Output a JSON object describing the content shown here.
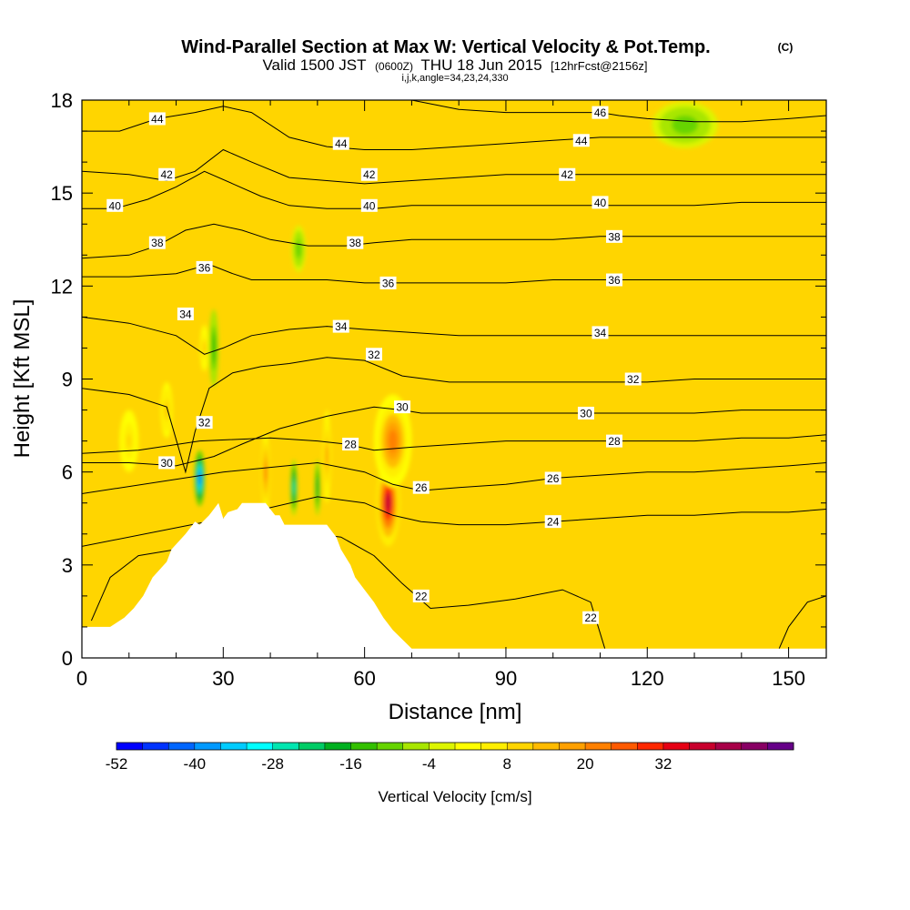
{
  "titles": {
    "main": "Wind-Parallel Section at Max W: Vertical Velocity & Pot.Temp.",
    "copyright": "(C)",
    "valid_prefix": "Valid 1500 JST",
    "valid_z": "(0600Z)",
    "valid_date": "THU 18 Jun 2015",
    "fcst": "[12hrFcst@2156z]",
    "indices": "i,j,k,angle=34,23,24,330"
  },
  "chart_data": {
    "type": "heatmap",
    "title": "Wind-Parallel Section at Max W: Vertical Velocity & Pot.Temp.",
    "xlabel": "Distance [nm]",
    "ylabel": "Height [Kft MSL]",
    "xlim": [
      0,
      158
    ],
    "ylim": [
      0,
      18
    ],
    "xticks": [
      0,
      30,
      60,
      90,
      120,
      150
    ],
    "yticks": [
      0,
      3,
      6,
      9,
      12,
      15,
      18
    ],
    "colorbar": {
      "label": "Vertical Velocity [cm/s]",
      "tick_values": [
        -52,
        -40,
        -28,
        -16,
        -4,
        8,
        20,
        32
      ],
      "levels_min": -52,
      "level_step": 4,
      "colors": [
        "#0000ff",
        "#0033ff",
        "#0066ff",
        "#0099ff",
        "#00ccff",
        "#00ffff",
        "#00e6b0",
        "#00cc66",
        "#00b020",
        "#33c000",
        "#66d400",
        "#a8e600",
        "#ddf500",
        "#ffff00",
        "#ffee00",
        "#ffd500",
        "#ffbb00",
        "#ffa000",
        "#ff8000",
        "#ff5a00",
        "#ff2800",
        "#e60014",
        "#c8002d",
        "#a80048",
        "#880064",
        "#660088"
      ]
    },
    "terrain": {
      "distance_nm": [
        0,
        6,
        9,
        11,
        13,
        15,
        18,
        19,
        22,
        24,
        25,
        27,
        29,
        30,
        31,
        33,
        34,
        36,
        38,
        39,
        41,
        42,
        43,
        46,
        48,
        49,
        51,
        52,
        54,
        55,
        57,
        58,
        60,
        62,
        64,
        66,
        68,
        70,
        72,
        158
      ],
      "height_kft": [
        1.0,
        1.0,
        1.3,
        1.6,
        2.0,
        2.6,
        3.1,
        3.5,
        4.0,
        4.4,
        4.3,
        4.6,
        5.0,
        4.5,
        4.7,
        4.8,
        5.0,
        5.0,
        5.0,
        5.0,
        4.6,
        4.6,
        4.3,
        4.3,
        4.3,
        4.3,
        4.3,
        4.3,
        3.9,
        3.5,
        3.0,
        2.6,
        2.2,
        1.8,
        1.3,
        0.9,
        0.6,
        0.3,
        0.3,
        0.3
      ]
    },
    "vertical_velocity_features": [
      {
        "feature": "strong updraft core",
        "center_nm": 65,
        "center_kft": 5.0,
        "peak_cm_s": 38,
        "width_nm": 5,
        "height_kft": 2.8
      },
      {
        "feature": "updraft core",
        "center_nm": 66,
        "center_kft": 7.0,
        "peak_cm_s": 22,
        "width_nm": 8,
        "height_kft": 3.0
      },
      {
        "feature": "updraft column",
        "center_nm": 39,
        "center_kft": 6.0,
        "peak_cm_s": 24,
        "width_nm": 1.6,
        "height_kft": 2.5
      },
      {
        "feature": "updraft column",
        "center_nm": 52,
        "center_kft": 6.5,
        "peak_cm_s": 20,
        "width_nm": 1.6,
        "height_kft": 3.0
      },
      {
        "feature": "updraft",
        "center_nm": 18,
        "center_kft": 8.0,
        "peak_cm_s": 14,
        "width_nm": 2.5,
        "height_kft": 1.8
      },
      {
        "feature": "updraft",
        "center_nm": 26,
        "center_kft": 10.0,
        "peak_cm_s": 12,
        "width_nm": 1.8,
        "height_kft": 1.5
      },
      {
        "feature": "updraft",
        "center_nm": 10,
        "center_kft": 7.0,
        "peak_cm_s": 10,
        "width_nm": 4,
        "height_kft": 2.0
      },
      {
        "feature": "downdraft core",
        "center_nm": 25,
        "center_kft": 5.8,
        "peak_cm_s": -42,
        "width_nm": 2.2,
        "height_kft": 1.8
      },
      {
        "feature": "downdraft band",
        "center_nm": 28,
        "center_kft": 10.0,
        "peak_cm_s": -16,
        "width_nm": 2.0,
        "height_kft": 2.5
      },
      {
        "feature": "downdraft column",
        "center_nm": 45,
        "center_kft": 5.5,
        "peak_cm_s": -28,
        "width_nm": 1.5,
        "height_kft": 1.8
      },
      {
        "feature": "downdraft column",
        "center_nm": 50,
        "center_kft": 5.5,
        "peak_cm_s": -20,
        "width_nm": 1.2,
        "height_kft": 1.8
      },
      {
        "feature": "downdraft aloft",
        "center_nm": 46,
        "center_kft": 13.2,
        "peak_cm_s": -12,
        "width_nm": 3.0,
        "height_kft": 1.5
      },
      {
        "feature": "downdraft aloft",
        "center_nm": 128,
        "center_kft": 17.2,
        "peak_cm_s": -10,
        "width_nm": 14,
        "height_kft": 1.5
      }
    ],
    "theta_contours": [
      {
        "label": "22",
        "distance_nm": [
          2,
          6,
          12,
          20,
          30,
          45,
          55,
          62,
          68,
          74,
          82,
          92,
          102,
          108,
          111
        ],
        "height_kft": [
          1.2,
          2.6,
          3.3,
          3.5,
          3.9,
          4.1,
          3.9,
          3.3,
          2.4,
          1.6,
          1.7,
          1.9,
          2.2,
          1.8,
          0.3
        ]
      },
      {
        "label": "22",
        "distance_nm": [
          148,
          150,
          154,
          158
        ],
        "height_kft": [
          0.3,
          1.0,
          1.8,
          2.0
        ]
      },
      {
        "label": "24",
        "distance_nm": [
          0,
          30,
          50,
          60,
          66,
          72,
          80,
          90,
          100,
          110,
          120,
          130,
          140,
          150,
          158
        ],
        "height_kft": [
          3.6,
          4.5,
          5.2,
          5.0,
          4.6,
          4.4,
          4.3,
          4.3,
          4.4,
          4.5,
          4.6,
          4.6,
          4.7,
          4.7,
          4.8
        ]
      },
      {
        "label": "26",
        "distance_nm": [
          0,
          30,
          50,
          60,
          66,
          72,
          80,
          90,
          100,
          110,
          120,
          130,
          140,
          150,
          158
        ],
        "height_kft": [
          5.3,
          6.0,
          6.3,
          6.0,
          5.6,
          5.4,
          5.5,
          5.6,
          5.8,
          5.9,
          6.0,
          6.0,
          6.1,
          6.2,
          6.3
        ]
      },
      {
        "label": "28",
        "distance_nm": [
          0,
          12,
          25,
          40,
          50,
          56,
          62,
          70,
          80,
          90,
          100,
          110,
          120,
          130,
          140,
          150,
          158
        ],
        "height_kft": [
          6.6,
          6.7,
          7.0,
          7.1,
          7.0,
          6.9,
          6.7,
          6.8,
          6.9,
          7.0,
          7.0,
          7.0,
          7.0,
          7.0,
          7.1,
          7.1,
          7.2
        ]
      },
      {
        "label": "30",
        "distance_nm": [
          0,
          10,
          20,
          28,
          34,
          42,
          52,
          62,
          68,
          72,
          80,
          90,
          100,
          110,
          120,
          130,
          140,
          150,
          158
        ],
        "height_kft": [
          6.3,
          6.3,
          6.2,
          6.5,
          6.9,
          7.4,
          7.8,
          8.1,
          8.0,
          7.9,
          7.9,
          7.9,
          7.9,
          7.9,
          7.9,
          7.9,
          8.0,
          8.0,
          8.0
        ]
      },
      {
        "label": "32",
        "distance_nm": [
          0,
          10,
          18,
          22,
          24,
          27,
          32,
          38,
          44,
          52,
          60,
          68,
          78,
          90,
          100,
          110,
          120,
          130,
          140,
          150,
          158
        ],
        "height_kft": [
          8.7,
          8.5,
          8.1,
          6.0,
          7.3,
          8.7,
          9.2,
          9.4,
          9.5,
          9.7,
          9.6,
          9.1,
          8.9,
          8.9,
          8.9,
          8.9,
          8.9,
          9.0,
          9.0,
          9.0,
          9.0
        ]
      },
      {
        "label": "34",
        "distance_nm": [
          0,
          10,
          20,
          26,
          30,
          36,
          44,
          52,
          60,
          70,
          80,
          90,
          100,
          110,
          120,
          130,
          140,
          150,
          158
        ],
        "height_kft": [
          11.0,
          10.8,
          10.4,
          9.8,
          10.0,
          10.4,
          10.6,
          10.7,
          10.6,
          10.5,
          10.4,
          10.4,
          10.4,
          10.4,
          10.4,
          10.4,
          10.4,
          10.4,
          10.4
        ]
      },
      {
        "label": "36",
        "distance_nm": [
          0,
          10,
          20,
          27,
          32,
          36,
          44,
          52,
          60,
          70,
          80,
          90,
          100,
          110,
          120,
          130,
          140,
          150,
          158
        ],
        "height_kft": [
          12.3,
          12.3,
          12.4,
          12.7,
          12.4,
          12.2,
          12.2,
          12.2,
          12.1,
          12.1,
          12.1,
          12.1,
          12.2,
          12.2,
          12.2,
          12.2,
          12.2,
          12.2,
          12.2
        ]
      },
      {
        "label": "38",
        "distance_nm": [
          0,
          10,
          16,
          22,
          28,
          34,
          40,
          48,
          56,
          62,
          70,
          80,
          90,
          100,
          110,
          120,
          130,
          140,
          150,
          158
        ],
        "height_kft": [
          12.9,
          13.0,
          13.3,
          13.8,
          14.0,
          13.8,
          13.5,
          13.3,
          13.3,
          13.4,
          13.5,
          13.5,
          13.5,
          13.5,
          13.6,
          13.6,
          13.6,
          13.6,
          13.6,
          13.6
        ]
      },
      {
        "label": "40",
        "distance_nm": [
          0,
          7,
          14,
          20,
          26,
          32,
          38,
          44,
          52,
          62,
          70,
          80,
          90,
          100,
          110,
          120,
          130,
          140,
          150,
          158
        ],
        "height_kft": [
          14.5,
          14.5,
          14.8,
          15.2,
          15.7,
          15.3,
          14.9,
          14.6,
          14.5,
          14.5,
          14.6,
          14.6,
          14.6,
          14.6,
          14.6,
          14.6,
          14.6,
          14.7,
          14.7,
          14.7
        ]
      },
      {
        "label": "42",
        "distance_nm": [
          0,
          10,
          18,
          24,
          30,
          36,
          44,
          52,
          60,
          70,
          80,
          90,
          100,
          110,
          120,
          130,
          140,
          150,
          158
        ],
        "height_kft": [
          15.7,
          15.6,
          15.4,
          15.7,
          16.4,
          16.0,
          15.5,
          15.4,
          15.3,
          15.4,
          15.5,
          15.6,
          15.6,
          15.6,
          15.6,
          15.6,
          15.6,
          15.6,
          15.6
        ]
      },
      {
        "label": "44",
        "distance_nm": [
          0,
          8,
          16,
          24,
          30,
          36,
          44,
          52,
          60,
          70,
          80,
          90,
          100,
          110,
          120,
          130,
          140,
          150,
          158
        ],
        "height_kft": [
          17.0,
          17.0,
          17.4,
          17.6,
          17.8,
          17.6,
          16.8,
          16.5,
          16.4,
          16.4,
          16.5,
          16.6,
          16.7,
          16.8,
          16.8,
          16.8,
          16.8,
          16.8,
          16.8
        ]
      },
      {
        "label": "46",
        "distance_nm": [
          70,
          80,
          90,
          100,
          110,
          114,
          120,
          130,
          140,
          150,
          158
        ],
        "height_kft": [
          18.0,
          17.7,
          17.6,
          17.6,
          17.6,
          17.5,
          17.4,
          17.3,
          17.3,
          17.4,
          17.5
        ]
      }
    ],
    "theta_labels": [
      {
        "text": "44",
        "x": 16,
        "y": 17.4
      },
      {
        "text": "44",
        "x": 55,
        "y": 16.6
      },
      {
        "text": "46",
        "x": 110,
        "y": 17.6
      },
      {
        "text": "44",
        "x": 106,
        "y": 16.7
      },
      {
        "text": "42",
        "x": 18,
        "y": 15.6
      },
      {
        "text": "42",
        "x": 61,
        "y": 15.6
      },
      {
        "text": "42",
        "x": 103,
        "y": 15.6
      },
      {
        "text": "40",
        "x": 7,
        "y": 14.6
      },
      {
        "text": "40",
        "x": 61,
        "y": 14.6
      },
      {
        "text": "40",
        "x": 110,
        "y": 14.7
      },
      {
        "text": "38",
        "x": 16,
        "y": 13.4
      },
      {
        "text": "38",
        "x": 58,
        "y": 13.4
      },
      {
        "text": "38",
        "x": 113,
        "y": 13.6
      },
      {
        "text": "36",
        "x": 26,
        "y": 12.6
      },
      {
        "text": "36",
        "x": 65,
        "y": 12.1
      },
      {
        "text": "36",
        "x": 113,
        "y": 12.2
      },
      {
        "text": "34",
        "x": 22,
        "y": 11.1
      },
      {
        "text": "34",
        "x": 55,
        "y": 10.7
      },
      {
        "text": "34",
        "x": 110,
        "y": 10.5
      },
      {
        "text": "32",
        "x": 62,
        "y": 9.8
      },
      {
        "text": "32",
        "x": 117,
        "y": 9.0
      },
      {
        "text": "32",
        "x": 26,
        "y": 7.6
      },
      {
        "text": "30",
        "x": 68,
        "y": 8.1
      },
      {
        "text": "30",
        "x": 107,
        "y": 7.9
      },
      {
        "text": "30",
        "x": 18,
        "y": 6.3
      },
      {
        "text": "28",
        "x": 57,
        "y": 6.9
      },
      {
        "text": "28",
        "x": 113,
        "y": 7.0
      },
      {
        "text": "26",
        "x": 72,
        "y": 5.5
      },
      {
        "text": "26",
        "x": 100,
        "y": 5.8
      },
      {
        "text": "24",
        "x": 100,
        "y": 4.4
      },
      {
        "text": "22",
        "x": 72,
        "y": 2.0
      },
      {
        "text": "22",
        "x": 108,
        "y": 1.3
      }
    ]
  }
}
